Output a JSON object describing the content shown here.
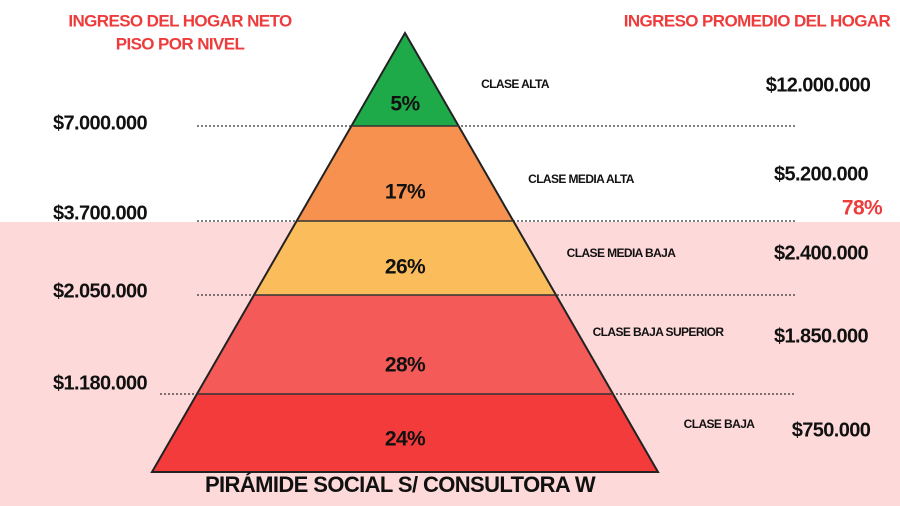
{
  "header": {
    "left_title": [
      "INGRESO DEL HOGAR NETO",
      "PISO POR NIVEL"
    ],
    "right_title": "INGRESO PROMEDIO DEL HOGAR"
  },
  "levels": [
    {
      "share": "5%",
      "class": "CLASE ALTA",
      "average": "$12.000.000"
    },
    {
      "share": "17%",
      "class": "CLASE MEDIA ALTA",
      "average": "$5.200.000"
    },
    {
      "share": "26%",
      "class": "CLASE MEDIA BAJA",
      "average": "$2.400.000"
    },
    {
      "share": "28%",
      "class": "CLASE BAJA SUPERIOR",
      "average": "$1.850.000"
    },
    {
      "share": "24%",
      "class": "CLASE BAJA",
      "average": "$750.000"
    }
  ],
  "floors": [
    "$7.000.000",
    "$3.700.000",
    "$2.050.000",
    "$1.180.000"
  ],
  "highlight": "78%",
  "footer": "PIRÁMIDE SOCIAL S/ CONSULTORA W"
}
